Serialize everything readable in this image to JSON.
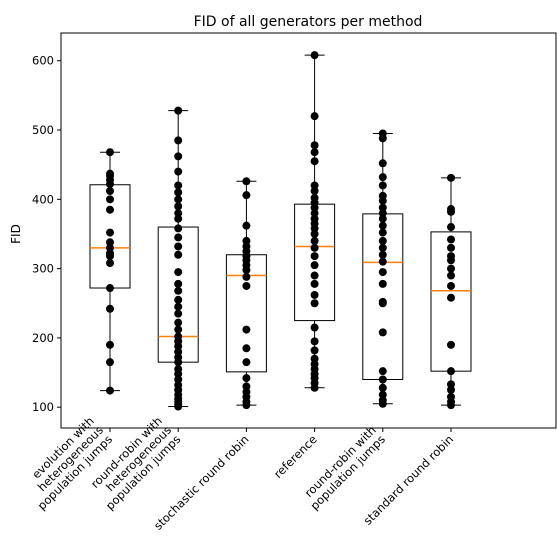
{
  "chart_data": {
    "type": "box",
    "title": "FID of all generators per method",
    "ylabel": "FID",
    "xlabel": "",
    "ylim": [
      70,
      640
    ],
    "yticks": [
      100,
      200,
      300,
      400,
      500,
      600
    ],
    "grid": false,
    "colors": {
      "box": "#000000",
      "median": "#ff7f0e",
      "points": "#000000"
    },
    "categories": [
      "evolution with\nheterogeneous\npopulation jumps",
      "round-robin with\nheterogeneous\npopulation jumps",
      "stochastic round robin",
      "reference",
      "round-robin with\npopulation jumps",
      "standard round robin"
    ],
    "boxes": [
      {
        "whisker_low": 124,
        "q1": 272,
        "median": 330,
        "q3": 421,
        "whisker_high": 468,
        "points": [
          124,
          165,
          190,
          242,
          272,
          308,
          318,
          322,
          330,
          338,
          352,
          385,
          400,
          412,
          422,
          428,
          434,
          437,
          468
        ]
      },
      {
        "whisker_low": 101,
        "q1": 165,
        "median": 202,
        "q3": 360,
        "whisker_high": 528,
        "points": [
          101,
          104,
          108,
          112,
          118,
          125,
          132,
          140,
          148,
          155,
          165,
          172,
          180,
          188,
          195,
          202,
          212,
          222,
          235,
          245,
          255,
          268,
          278,
          295,
          320,
          332,
          345,
          358,
          372,
          380,
          390,
          400,
          410,
          420,
          440,
          462,
          485,
          528
        ]
      },
      {
        "whisker_low": 103,
        "q1": 151,
        "median": 290,
        "q3": 320,
        "whisker_high": 426,
        "points": [
          103,
          108,
          115,
          122,
          130,
          142,
          165,
          185,
          212,
          275,
          288,
          298,
          305,
          312,
          318,
          325,
          332,
          340,
          362,
          406,
          426
        ]
      },
      {
        "whisker_low": 128,
        "q1": 225,
        "median": 332,
        "q3": 393,
        "whisker_high": 608,
        "points": [
          128,
          135,
          142,
          148,
          155,
          162,
          170,
          182,
          195,
          215,
          250,
          262,
          278,
          290,
          305,
          318,
          330,
          340,
          350,
          358,
          365,
          372,
          380,
          388,
          395,
          402,
          412,
          420,
          455,
          468,
          478,
          520,
          608
        ]
      },
      {
        "whisker_low": 105,
        "q1": 140,
        "median": 309,
        "q3": 379,
        "whisker_high": 495,
        "points": [
          105,
          110,
          118,
          128,
          140,
          152,
          208,
          250,
          252,
          278,
          295,
          310,
          320,
          330,
          340,
          352,
          362,
          372,
          380,
          388,
          398,
          405,
          420,
          432,
          452,
          488,
          495
        ]
      },
      {
        "whisker_low": 103,
        "q1": 152,
        "median": 268,
        "q3": 353,
        "whisker_high": 431,
        "points": [
          103,
          108,
          115,
          125,
          133,
          152,
          190,
          258,
          275,
          290,
          300,
          312,
          318,
          330,
          342,
          360,
          382,
          386,
          431
        ]
      }
    ]
  }
}
